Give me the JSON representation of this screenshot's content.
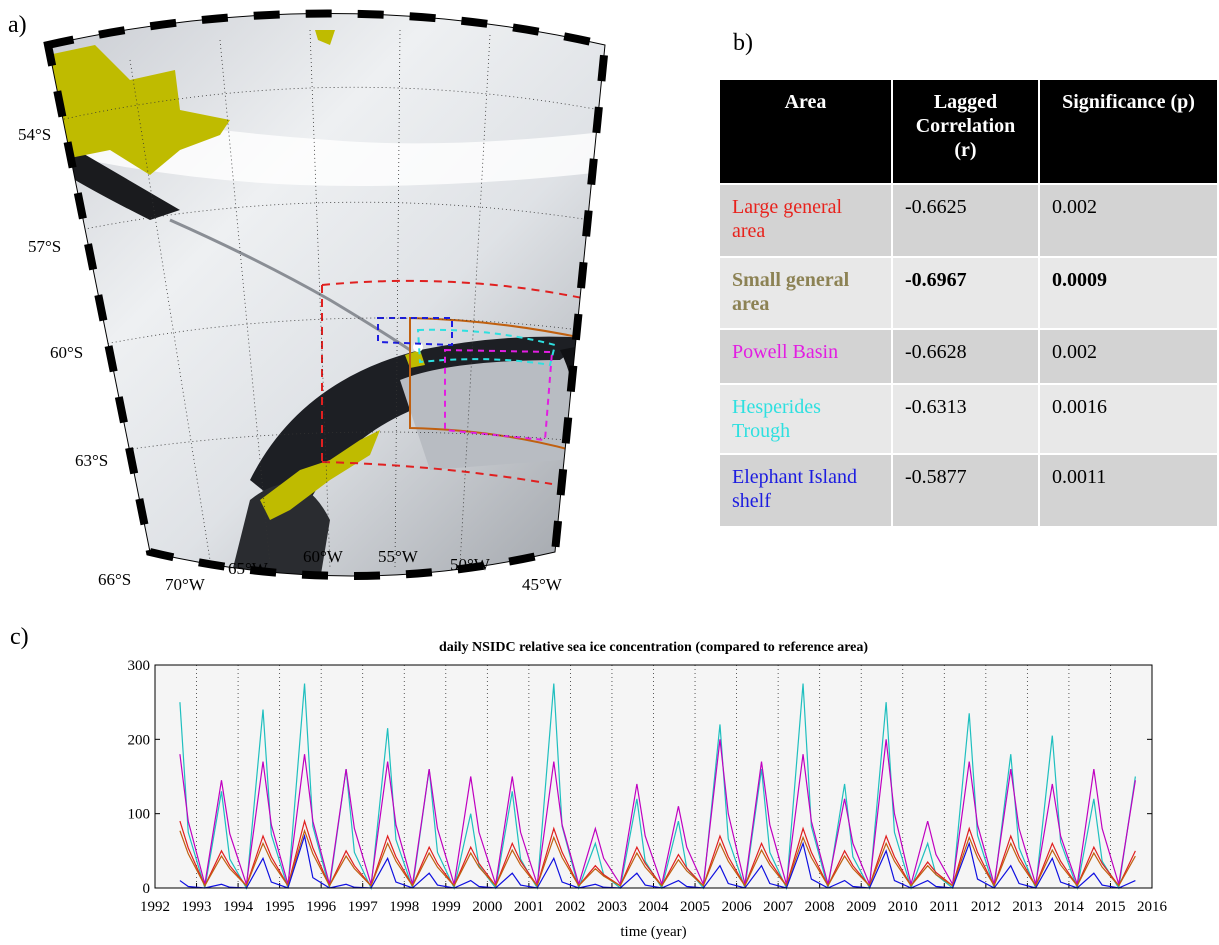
{
  "panel_labels": [
    "a)",
    "b)",
    "c)"
  ],
  "map": {
    "lat_labels": [
      "54°S",
      "57°S",
      "60°S",
      "63°S",
      "66°S"
    ],
    "lon_labels": [
      "70°W",
      "65°W",
      "60°W",
      "55°W",
      "50°W",
      "45°W"
    ]
  },
  "table": {
    "header": [
      "Area",
      "Lagged Correlation (r)",
      "Significance (p)"
    ],
    "rows": [
      {
        "area": "Large general area",
        "r": "-0.6625",
        "p": "0.002",
        "color": "#e8221c",
        "bold": false
      },
      {
        "area": "Small general area",
        "r": "-0.6967",
        "p": "0.0009",
        "color": "#8c8254",
        "bold": true
      },
      {
        "area": "Powell Basin",
        "r": "-0.6628",
        "p": "0.002",
        "color": "#e21de2",
        "bold": false
      },
      {
        "area": "Hesperides Trough",
        "r": "-0.6313",
        "p": "0.0016",
        "color": "#2ee0e0",
        "bold": false
      },
      {
        "area": "Elephant Island shelf",
        "r": "-0.5877",
        "p": "0.0011",
        "color": "#1c1ce0",
        "bold": false
      }
    ]
  },
  "chart_data": {
    "type": "line",
    "title": "daily NSIDC relative sea ice concentration (compared to reference area)",
    "xlabel": "time (year)",
    "xlim": [
      1992,
      2016
    ],
    "xticks": [
      1992,
      1993,
      1994,
      1995,
      1996,
      1997,
      1998,
      1999,
      2000,
      2001,
      2002,
      2003,
      2004,
      2005,
      2006,
      2007,
      2008,
      2009,
      2010,
      2011,
      2012,
      2013,
      2014,
      2015,
      2016
    ],
    "ylim": [
      0,
      300
    ],
    "yticks": [
      0,
      100,
      200,
      300
    ],
    "grid": "x",
    "x": [
      1992.6,
      1992.8,
      1993.2,
      1993.6,
      1993.8,
      1994.2,
      1994.6,
      1994.8,
      1995.2,
      1995.6,
      1995.8,
      1996.2,
      1996.6,
      1996.8,
      1997.2,
      1997.6,
      1997.8,
      1998.2,
      1998.6,
      1998.8,
      1999.2,
      1999.6,
      1999.8,
      2000.2,
      2000.6,
      2000.8,
      2001.2,
      2001.6,
      2001.8,
      2002.2,
      2002.6,
      2002.8,
      2003.2,
      2003.6,
      2003.8,
      2004.2,
      2004.6,
      2004.8,
      2005.2,
      2005.6,
      2005.8,
      2006.2,
      2006.6,
      2006.8,
      2007.2,
      2007.6,
      2007.8,
      2008.2,
      2008.6,
      2008.8,
      2009.2,
      2009.6,
      2009.8,
      2010.2,
      2010.6,
      2010.8,
      2011.2,
      2011.6,
      2011.8,
      2012.2,
      2012.6,
      2012.8,
      2013.2,
      2013.6,
      2013.8,
      2014.2,
      2014.6,
      2014.8,
      2015.2,
      2015.6
    ],
    "series": [
      {
        "color": "#1fbfbf",
        "values": [
          250,
          75,
          0,
          130,
          39,
          0,
          240,
          72,
          0,
          275,
          83,
          0,
          160,
          48,
          0,
          215,
          65,
          0,
          160,
          48,
          0,
          100,
          30,
          0,
          130,
          39,
          0,
          275,
          83,
          0,
          60,
          18,
          0,
          120,
          36,
          0,
          90,
          27,
          0,
          220,
          66,
          0,
          160,
          48,
          0,
          275,
          83,
          0,
          140,
          42,
          0,
          250,
          75,
          0,
          60,
          18,
          0,
          235,
          71,
          0,
          180,
          54,
          0,
          205,
          62,
          0,
          120,
          36,
          0,
          150
        ]
      },
      {
        "color": "#c000c0",
        "values": [
          180,
          90,
          5,
          145,
          73,
          5,
          170,
          85,
          5,
          180,
          90,
          5,
          160,
          80,
          5,
          170,
          85,
          5,
          160,
          80,
          5,
          150,
          75,
          5,
          150,
          75,
          5,
          170,
          85,
          5,
          80,
          40,
          5,
          140,
          70,
          5,
          110,
          55,
          5,
          200,
          100,
          5,
          170,
          85,
          5,
          180,
          90,
          5,
          120,
          60,
          5,
          200,
          100,
          5,
          90,
          45,
          5,
          170,
          85,
          5,
          160,
          80,
          5,
          140,
          70,
          5,
          160,
          80,
          5,
          145
        ]
      },
      {
        "color": "#e02020",
        "values": [
          90,
          54,
          3,
          50,
          30,
          3,
          70,
          42,
          3,
          90,
          54,
          3,
          50,
          30,
          3,
          70,
          42,
          3,
          55,
          33,
          3,
          55,
          33,
          3,
          60,
          36,
          3,
          80,
          48,
          3,
          30,
          18,
          3,
          55,
          33,
          3,
          45,
          27,
          3,
          70,
          42,
          3,
          60,
          36,
          3,
          80,
          48,
          3,
          50,
          30,
          3,
          70,
          42,
          3,
          35,
          21,
          3,
          80,
          48,
          3,
          70,
          42,
          3,
          60,
          36,
          3,
          55,
          33,
          3,
          50
        ]
      },
      {
        "color": "#c06010",
        "values": [
          77,
          46,
          3,
          43,
          26,
          3,
          60,
          36,
          3,
          77,
          46,
          3,
          43,
          26,
          3,
          60,
          36,
          3,
          47,
          28,
          3,
          47,
          28,
          3,
          51,
          31,
          3,
          68,
          41,
          3,
          26,
          16,
          3,
          47,
          28,
          3,
          38,
          23,
          3,
          60,
          36,
          3,
          51,
          31,
          3,
          68,
          41,
          3,
          43,
          26,
          3,
          60,
          36,
          3,
          30,
          18,
          3,
          68,
          41,
          3,
          60,
          36,
          3,
          51,
          31,
          3,
          47,
          28,
          3,
          43
        ]
      },
      {
        "color": "#1010e0",
        "values": [
          10,
          2,
          0,
          5,
          1,
          0,
          40,
          8,
          0,
          70,
          14,
          0,
          5,
          1,
          0,
          40,
          8,
          0,
          20,
          4,
          0,
          10,
          2,
          0,
          20,
          4,
          0,
          40,
          8,
          0,
          5,
          1,
          0,
          20,
          4,
          0,
          10,
          2,
          0,
          30,
          6,
          0,
          30,
          6,
          0,
          60,
          12,
          0,
          10,
          2,
          0,
          50,
          10,
          0,
          10,
          2,
          0,
          60,
          12,
          0,
          30,
          6,
          0,
          40,
          8,
          0,
          20,
          4,
          0,
          10
        ]
      }
    ]
  }
}
